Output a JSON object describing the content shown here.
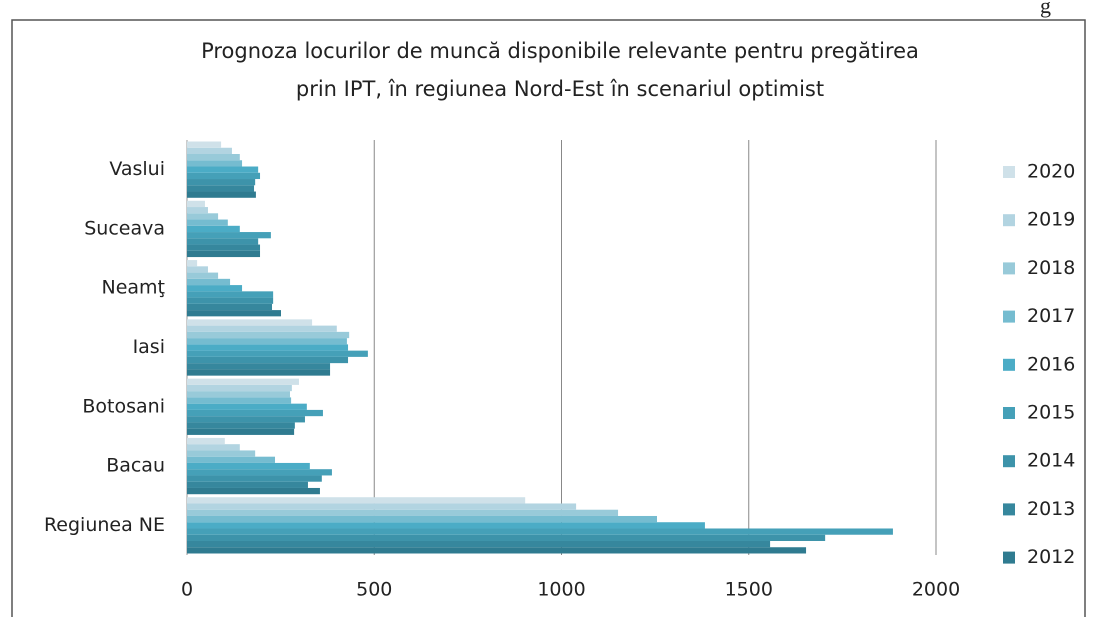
{
  "corner_text": "g",
  "chart_data": {
    "type": "bar",
    "orientation": "horizontal",
    "title": [
      "Prognoza locurilor de muncă disponibile relevante pentru pregătirea",
      "prin IPT, în regiunea Nord-Est în scenariul optimist"
    ],
    "categories": [
      "Regiunea NE",
      "Bacau",
      "Botosani",
      "Iasi",
      "Neamţ",
      "Suceava",
      "Vaslui"
    ],
    "series": [
      {
        "name": "2012",
        "color": "#2f7b90",
        "values": [
          1653,
          355,
          286,
          382,
          251,
          195,
          184
        ]
      },
      {
        "name": "2013",
        "color": "#36879d",
        "values": [
          1557,
          323,
          288,
          382,
          227,
          195,
          179
        ]
      },
      {
        "name": "2014",
        "color": "#3d93aa",
        "values": [
          1704,
          360,
          315,
          430,
          230,
          190,
          182
        ]
      },
      {
        "name": "2015",
        "color": "#45a0b8",
        "values": [
          1885,
          387,
          363,
          483,
          230,
          224,
          195
        ]
      },
      {
        "name": "2016",
        "color": "#4bacc6",
        "values": [
          1383,
          328,
          320,
          430,
          147,
          141,
          190
        ]
      },
      {
        "name": "2017",
        "color": "#75bcd0",
        "values": [
          1255,
          235,
          278,
          427,
          115,
          109,
          147
        ]
      },
      {
        "name": "2018",
        "color": "#98cad9",
        "values": [
          1151,
          182,
          275,
          433,
          83,
          83,
          141
        ]
      },
      {
        "name": "2019",
        "color": "#b2d4e1",
        "values": [
          1039,
          141,
          280,
          400,
          56,
          56,
          120
        ]
      },
      {
        "name": "2020",
        "color": "#cfe1e9",
        "values": [
          903,
          101,
          299,
          334,
          27,
          48,
          91
        ]
      }
    ],
    "xlim": [
      0,
      2000
    ],
    "xticks": [
      0,
      500,
      1000,
      1500,
      2000
    ],
    "grid": true,
    "legend": "right"
  }
}
